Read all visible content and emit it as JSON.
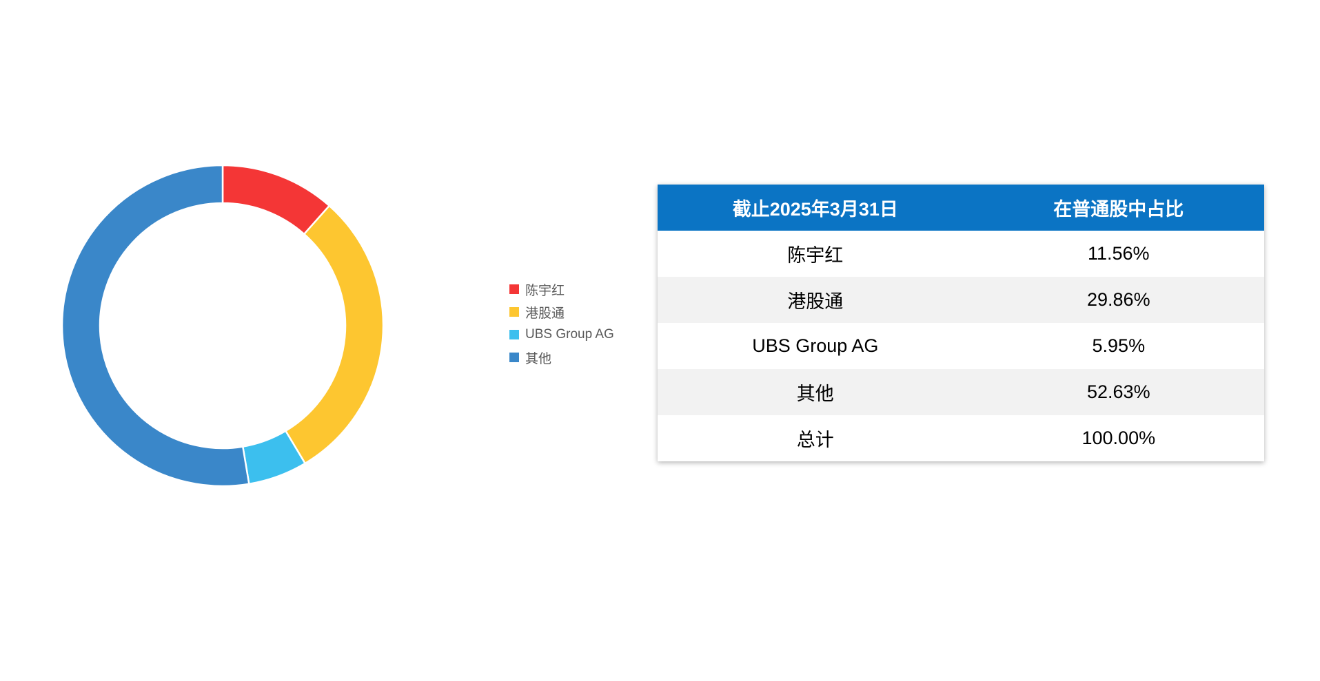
{
  "chart_data": {
    "type": "pie",
    "donut": true,
    "start_angle_deg": -90,
    "direction": "clockwise",
    "categories": [
      "陈宇红",
      "港股通",
      "UBS Group AG",
      "其他"
    ],
    "values": [
      11.56,
      29.86,
      5.95,
      52.63
    ],
    "colors": [
      "#f43636",
      "#fdc630",
      "#3cbfee",
      "#3a87c9"
    ],
    "title": "",
    "legend_position": "right",
    "slice_gap_color": "#ffffff"
  },
  "legend": {
    "items": [
      {
        "label": "陈宇红",
        "color": "#f43636"
      },
      {
        "label": "港股通",
        "color": "#fdc630"
      },
      {
        "label": "UBS Group AG",
        "color": "#3cbfee"
      },
      {
        "label": "其他",
        "color": "#3a87c9"
      }
    ]
  },
  "table": {
    "header_bg": "#0b74c4",
    "header_text_color": "#ffffff",
    "alt_row_bg": "#f2f2f2",
    "headers": [
      "截止2025年3月31日",
      "在普通股中占比"
    ],
    "rows": [
      [
        "陈宇红",
        "11.56%"
      ],
      [
        "港股通",
        "29.86%"
      ],
      [
        "UBS Group AG",
        "5.95%"
      ],
      [
        "其他",
        "52.63%"
      ],
      [
        "总计",
        "100.00%"
      ]
    ]
  }
}
